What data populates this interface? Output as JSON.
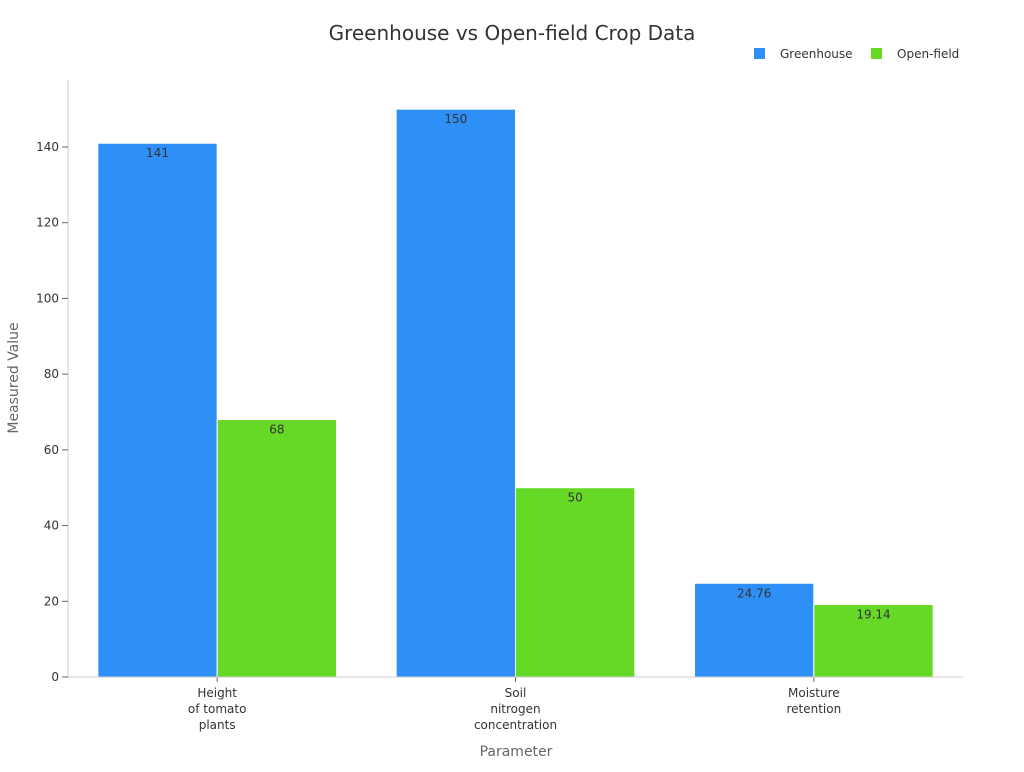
{
  "chart_data": {
    "type": "bar",
    "title": "Greenhouse vs Open-field Crop Data",
    "xlabel": "Parameter",
    "ylabel": "Measured Value",
    "categories": [
      [
        "Height",
        "of tomato",
        "plants"
      ],
      [
        "Soil",
        "nitrogen",
        "concentration"
      ],
      [
        "Moisture",
        "retention"
      ]
    ],
    "series": [
      {
        "name": "Greenhouse",
        "color": "#2e8ff6",
        "values": [
          141,
          150,
          24.76
        ],
        "labels": [
          "141",
          "150",
          "24.76"
        ]
      },
      {
        "name": "Open-field",
        "color": "#66d926",
        "values": [
          68,
          50,
          19.14
        ],
        "labels": [
          "68",
          "50",
          "19.14"
        ]
      }
    ],
    "ylim": [
      0,
      157.7
    ],
    "yticks": [
      0,
      20,
      40,
      60,
      80,
      100,
      120,
      140
    ],
    "grid": false,
    "legend": "top-right"
  }
}
